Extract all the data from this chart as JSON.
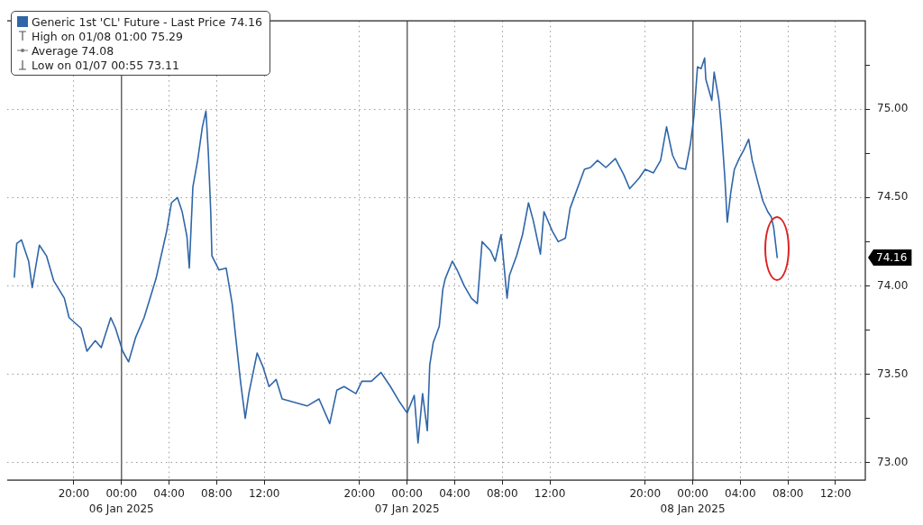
{
  "chart_data": {
    "type": "line",
    "x": [
      "2025-01-05T15:00",
      "2025-01-05T15:12",
      "2025-01-05T15:36",
      "2025-01-05T16:12",
      "2025-01-05T16:30",
      "2025-01-05T17:06",
      "2025-01-05T17:42",
      "2025-01-05T18:18",
      "2025-01-05T19:12",
      "2025-01-05T19:36",
      "2025-01-05T20:36",
      "2025-01-05T21:06",
      "2025-01-05T21:48",
      "2025-01-05T22:18",
      "2025-01-05T23:06",
      "2025-01-05T23:30",
      "2025-01-06T00:06",
      "2025-01-06T00:36",
      "2025-01-06T01:12",
      "2025-01-06T01:54",
      "2025-01-06T02:24",
      "2025-01-06T02:54",
      "2025-01-06T03:30",
      "2025-01-06T03:48",
      "2025-01-06T04:12",
      "2025-01-06T04:42",
      "2025-01-06T05:06",
      "2025-01-06T05:30",
      "2025-01-06T05:42",
      "2025-01-06T06:00",
      "2025-01-06T06:24",
      "2025-01-06T06:48",
      "2025-01-06T07:06",
      "2025-01-06T07:18",
      "2025-01-06T07:30",
      "2025-01-06T07:36",
      "2025-01-06T08:12",
      "2025-01-06T08:48",
      "2025-01-06T09:18",
      "2025-01-06T09:36",
      "2025-01-06T10:00",
      "2025-01-06T10:24",
      "2025-01-06T10:42",
      "2025-01-06T11:24",
      "2025-01-06T11:54",
      "2025-01-06T12:24",
      "2025-01-06T13:00",
      "2025-01-06T13:30",
      "2025-01-06T15:36",
      "2025-01-06T16:36",
      "2025-01-06T17:30",
      "2025-01-06T18:06",
      "2025-01-06T18:42",
      "2025-01-06T19:42",
      "2025-01-06T20:12",
      "2025-01-06T21:00",
      "2025-01-06T21:48",
      "2025-01-06T22:36",
      "2025-01-06T23:18",
      "2025-01-07T00:00",
      "2025-01-07T00:36",
      "2025-01-07T00:55",
      "2025-01-07T01:18",
      "2025-01-07T01:42",
      "2025-01-07T01:54",
      "2025-01-07T02:12",
      "2025-01-07T02:42",
      "2025-01-07T03:00",
      "2025-01-07T03:12",
      "2025-01-07T03:48",
      "2025-01-07T04:12",
      "2025-01-07T04:48",
      "2025-01-07T05:24",
      "2025-01-07T05:54",
      "2025-01-07T06:18",
      "2025-01-07T07:00",
      "2025-01-07T07:24",
      "2025-01-07T07:54",
      "2025-01-07T08:24",
      "2025-01-07T08:36",
      "2025-01-07T09:12",
      "2025-01-07T09:42",
      "2025-01-07T10:12",
      "2025-01-07T10:36",
      "2025-01-07T11:12",
      "2025-01-07T11:30",
      "2025-01-07T12:12",
      "2025-01-07T12:42",
      "2025-01-07T13:18",
      "2025-01-07T13:42",
      "2025-01-07T14:54",
      "2025-01-07T15:24",
      "2025-01-07T16:00",
      "2025-01-07T16:42",
      "2025-01-07T17:30",
      "2025-01-07T18:12",
      "2025-01-07T18:42",
      "2025-01-07T19:30",
      "2025-01-07T20:00",
      "2025-01-07T20:42",
      "2025-01-07T21:18",
      "2025-01-07T21:48",
      "2025-01-07T22:18",
      "2025-01-07T22:48",
      "2025-01-07T23:24",
      "2025-01-07T23:48",
      "2025-01-08T00:06",
      "2025-01-08T00:24",
      "2025-01-08T00:42",
      "2025-01-08T01:00",
      "2025-01-08T01:06",
      "2025-01-08T01:36",
      "2025-01-08T01:48",
      "2025-01-08T02:12",
      "2025-01-08T02:24",
      "2025-01-08T02:42",
      "2025-01-08T02:54",
      "2025-01-08T03:12",
      "2025-01-08T03:30",
      "2025-01-08T03:54",
      "2025-01-08T04:18",
      "2025-01-08T04:42",
      "2025-01-08T05:00",
      "2025-01-08T05:30",
      "2025-01-08T05:54",
      "2025-01-08T06:18",
      "2025-01-08T06:36",
      "2025-01-08T06:48",
      "2025-01-08T07:06"
    ],
    "series": [
      {
        "name": "Generic 1st 'CL' Future - Last Price",
        "color": "#2f66a8",
        "values": [
          74.05,
          74.24,
          74.26,
          74.14,
          73.99,
          74.23,
          74.17,
          74.03,
          73.93,
          73.82,
          73.76,
          73.63,
          73.69,
          73.65,
          73.82,
          73.76,
          73.63,
          73.57,
          73.71,
          73.82,
          73.93,
          74.04,
          74.22,
          74.31,
          74.47,
          74.5,
          74.42,
          74.28,
          74.1,
          74.56,
          74.71,
          74.9,
          74.99,
          74.75,
          74.42,
          74.17,
          74.09,
          74.1,
          73.9,
          73.71,
          73.46,
          73.25,
          73.39,
          73.62,
          73.54,
          73.43,
          73.47,
          73.36,
          73.32,
          73.36,
          73.22,
          73.41,
          73.43,
          73.39,
          73.46,
          73.46,
          73.51,
          73.43,
          73.35,
          73.28,
          73.38,
          73.11,
          73.39,
          73.18,
          73.55,
          73.68,
          73.77,
          73.98,
          74.04,
          74.14,
          74.09,
          74.0,
          73.93,
          73.9,
          74.25,
          74.2,
          74.14,
          74.29,
          73.93,
          74.06,
          74.17,
          74.29,
          74.47,
          74.37,
          74.18,
          74.42,
          74.31,
          74.25,
          74.27,
          74.44,
          74.66,
          74.67,
          74.71,
          74.67,
          74.72,
          74.63,
          74.55,
          74.61,
          74.66,
          74.64,
          74.71,
          74.9,
          74.74,
          74.67,
          74.66,
          74.8,
          74.96,
          75.24,
          75.23,
          75.29,
          75.17,
          75.05,
          75.21,
          75.05,
          74.9,
          74.61,
          74.36,
          74.53,
          74.66,
          74.72,
          74.77,
          74.83,
          74.71,
          74.58,
          74.48,
          74.42,
          74.39,
          74.33,
          74.16
        ]
      }
    ],
    "xlim": [
      "2025-01-05T14:24",
      "2025-01-08T14:30"
    ],
    "xticks": [
      {
        "value": "2025-01-05T20:00",
        "label": "20:00"
      },
      {
        "value": "2025-01-06T00:00",
        "label": "00:00"
      },
      {
        "value": "2025-01-06T04:00",
        "label": "04:00"
      },
      {
        "value": "2025-01-06T08:00",
        "label": "08:00"
      },
      {
        "value": "2025-01-06T12:00",
        "label": "12:00"
      },
      {
        "value": "2025-01-06T20:00",
        "label": "20:00"
      },
      {
        "value": "2025-01-07T00:00",
        "label": "00:00"
      },
      {
        "value": "2025-01-07T04:00",
        "label": "04:00"
      },
      {
        "value": "2025-01-07T08:00",
        "label": "08:00"
      },
      {
        "value": "2025-01-07T12:00",
        "label": "12:00"
      },
      {
        "value": "2025-01-07T20:00",
        "label": "20:00"
      },
      {
        "value": "2025-01-08T00:00",
        "label": "00:00"
      },
      {
        "value": "2025-01-08T04:00",
        "label": "04:00"
      },
      {
        "value": "2025-01-08T08:00",
        "label": "08:00"
      },
      {
        "value": "2025-01-08T12:00",
        "label": "12:00"
      }
    ],
    "x2lim": [
      "2025-01-05T14:24",
      "2025-01-08T14:30"
    ],
    "x2ticks": [
      {
        "value": "2025-01-06",
        "label": "06 Jan 2025"
      },
      {
        "value": "2025-01-07",
        "label": "07 Jan 2025"
      },
      {
        "value": "2025-01-08",
        "label": "08 Jan 2025"
      }
    ],
    "ylim": [
      72.9,
      75.5
    ],
    "yticks": [
      {
        "value": 73,
        "label": "73.00"
      },
      {
        "value": 73.25,
        "label": null
      },
      {
        "value": 73.5,
        "label": "73.50"
      },
      {
        "value": 73.75,
        "label": null
      },
      {
        "value": 74,
        "label": "74.00"
      },
      {
        "value": 74.25,
        "label": null
      },
      {
        "value": 74.5,
        "label": "74.50"
      },
      {
        "value": 74.75,
        "label": null
      },
      {
        "value": 75,
        "label": "75.00"
      },
      {
        "value": 75.25,
        "label": null
      }
    ],
    "annotations": [
      "74.16",
      "High on 01/08 01:00 75.29",
      "Average 74.08",
      "Low on 01/07 00:55 73.11"
    ],
    "grid": true,
    "legend": "top left",
    "marker": "none",
    "line_style": "solid"
  }
}
